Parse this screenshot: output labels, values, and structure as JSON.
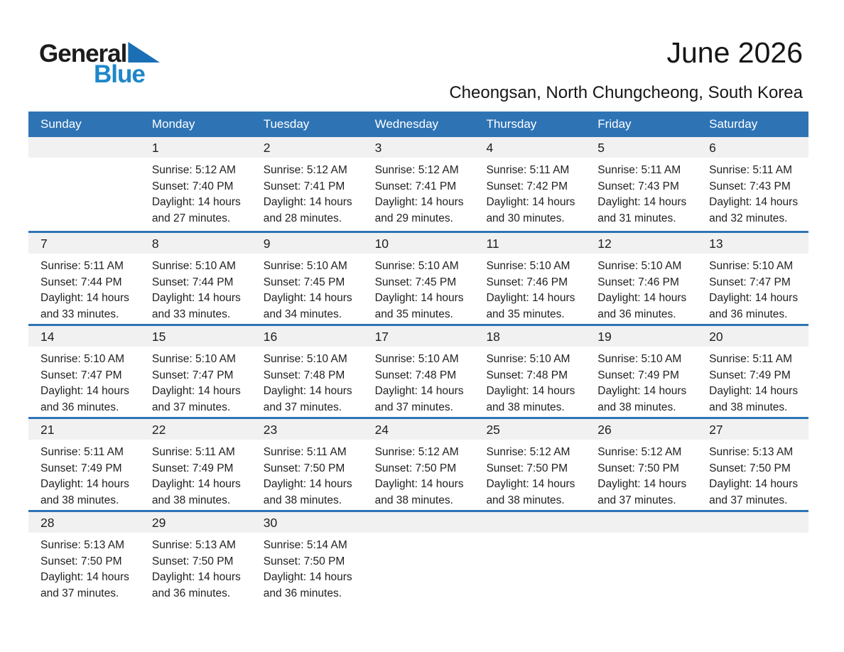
{
  "logo": {
    "general": "General",
    "blue": "Blue"
  },
  "header": {
    "title": "June 2026",
    "subtitle": "Cheongsan, North Chungcheong, South Korea"
  },
  "colors": {
    "header_blue": "#2e74b5",
    "separator_blue": "#2e74b5",
    "band_gray": "#f1f1f1",
    "logo_black": "#1c1c1c",
    "logo_blue": "#1e87c9",
    "text": "#212121"
  },
  "calendar": {
    "weekdays": [
      "Sunday",
      "Monday",
      "Tuesday",
      "Wednesday",
      "Thursday",
      "Friday",
      "Saturday"
    ],
    "weeks": [
      [
        null,
        {
          "day": "1",
          "sunrise": "Sunrise: 5:12 AM",
          "sunset": "Sunset: 7:40 PM",
          "daylight1": "Daylight: 14 hours",
          "daylight2": "and 27 minutes."
        },
        {
          "day": "2",
          "sunrise": "Sunrise: 5:12 AM",
          "sunset": "Sunset: 7:41 PM",
          "daylight1": "Daylight: 14 hours",
          "daylight2": "and 28 minutes."
        },
        {
          "day": "3",
          "sunrise": "Sunrise: 5:12 AM",
          "sunset": "Sunset: 7:41 PM",
          "daylight1": "Daylight: 14 hours",
          "daylight2": "and 29 minutes."
        },
        {
          "day": "4",
          "sunrise": "Sunrise: 5:11 AM",
          "sunset": "Sunset: 7:42 PM",
          "daylight1": "Daylight: 14 hours",
          "daylight2": "and 30 minutes."
        },
        {
          "day": "5",
          "sunrise": "Sunrise: 5:11 AM",
          "sunset": "Sunset: 7:43 PM",
          "daylight1": "Daylight: 14 hours",
          "daylight2": "and 31 minutes."
        },
        {
          "day": "6",
          "sunrise": "Sunrise: 5:11 AM",
          "sunset": "Sunset: 7:43 PM",
          "daylight1": "Daylight: 14 hours",
          "daylight2": "and 32 minutes."
        }
      ],
      [
        {
          "day": "7",
          "sunrise": "Sunrise: 5:11 AM",
          "sunset": "Sunset: 7:44 PM",
          "daylight1": "Daylight: 14 hours",
          "daylight2": "and 33 minutes."
        },
        {
          "day": "8",
          "sunrise": "Sunrise: 5:10 AM",
          "sunset": "Sunset: 7:44 PM",
          "daylight1": "Daylight: 14 hours",
          "daylight2": "and 33 minutes."
        },
        {
          "day": "9",
          "sunrise": "Sunrise: 5:10 AM",
          "sunset": "Sunset: 7:45 PM",
          "daylight1": "Daylight: 14 hours",
          "daylight2": "and 34 minutes."
        },
        {
          "day": "10",
          "sunrise": "Sunrise: 5:10 AM",
          "sunset": "Sunset: 7:45 PM",
          "daylight1": "Daylight: 14 hours",
          "daylight2": "and 35 minutes."
        },
        {
          "day": "11",
          "sunrise": "Sunrise: 5:10 AM",
          "sunset": "Sunset: 7:46 PM",
          "daylight1": "Daylight: 14 hours",
          "daylight2": "and 35 minutes."
        },
        {
          "day": "12",
          "sunrise": "Sunrise: 5:10 AM",
          "sunset": "Sunset: 7:46 PM",
          "daylight1": "Daylight: 14 hours",
          "daylight2": "and 36 minutes."
        },
        {
          "day": "13",
          "sunrise": "Sunrise: 5:10 AM",
          "sunset": "Sunset: 7:47 PM",
          "daylight1": "Daylight: 14 hours",
          "daylight2": "and 36 minutes."
        }
      ],
      [
        {
          "day": "14",
          "sunrise": "Sunrise: 5:10 AM",
          "sunset": "Sunset: 7:47 PM",
          "daylight1": "Daylight: 14 hours",
          "daylight2": "and 36 minutes."
        },
        {
          "day": "15",
          "sunrise": "Sunrise: 5:10 AM",
          "sunset": "Sunset: 7:47 PM",
          "daylight1": "Daylight: 14 hours",
          "daylight2": "and 37 minutes."
        },
        {
          "day": "16",
          "sunrise": "Sunrise: 5:10 AM",
          "sunset": "Sunset: 7:48 PM",
          "daylight1": "Daylight: 14 hours",
          "daylight2": "and 37 minutes."
        },
        {
          "day": "17",
          "sunrise": "Sunrise: 5:10 AM",
          "sunset": "Sunset: 7:48 PM",
          "daylight1": "Daylight: 14 hours",
          "daylight2": "and 37 minutes."
        },
        {
          "day": "18",
          "sunrise": "Sunrise: 5:10 AM",
          "sunset": "Sunset: 7:48 PM",
          "daylight1": "Daylight: 14 hours",
          "daylight2": "and 38 minutes."
        },
        {
          "day": "19",
          "sunrise": "Sunrise: 5:10 AM",
          "sunset": "Sunset: 7:49 PM",
          "daylight1": "Daylight: 14 hours",
          "daylight2": "and 38 minutes."
        },
        {
          "day": "20",
          "sunrise": "Sunrise: 5:11 AM",
          "sunset": "Sunset: 7:49 PM",
          "daylight1": "Daylight: 14 hours",
          "daylight2": "and 38 minutes."
        }
      ],
      [
        {
          "day": "21",
          "sunrise": "Sunrise: 5:11 AM",
          "sunset": "Sunset: 7:49 PM",
          "daylight1": "Daylight: 14 hours",
          "daylight2": "and 38 minutes."
        },
        {
          "day": "22",
          "sunrise": "Sunrise: 5:11 AM",
          "sunset": "Sunset: 7:49 PM",
          "daylight1": "Daylight: 14 hours",
          "daylight2": "and 38 minutes."
        },
        {
          "day": "23",
          "sunrise": "Sunrise: 5:11 AM",
          "sunset": "Sunset: 7:50 PM",
          "daylight1": "Daylight: 14 hours",
          "daylight2": "and 38 minutes."
        },
        {
          "day": "24",
          "sunrise": "Sunrise: 5:12 AM",
          "sunset": "Sunset: 7:50 PM",
          "daylight1": "Daylight: 14 hours",
          "daylight2": "and 38 minutes."
        },
        {
          "day": "25",
          "sunrise": "Sunrise: 5:12 AM",
          "sunset": "Sunset: 7:50 PM",
          "daylight1": "Daylight: 14 hours",
          "daylight2": "and 38 minutes."
        },
        {
          "day": "26",
          "sunrise": "Sunrise: 5:12 AM",
          "sunset": "Sunset: 7:50 PM",
          "daylight1": "Daylight: 14 hours",
          "daylight2": "and 37 minutes."
        },
        {
          "day": "27",
          "sunrise": "Sunrise: 5:13 AM",
          "sunset": "Sunset: 7:50 PM",
          "daylight1": "Daylight: 14 hours",
          "daylight2": "and 37 minutes."
        }
      ],
      [
        {
          "day": "28",
          "sunrise": "Sunrise: 5:13 AM",
          "sunset": "Sunset: 7:50 PM",
          "daylight1": "Daylight: 14 hours",
          "daylight2": "and 37 minutes."
        },
        {
          "day": "29",
          "sunrise": "Sunrise: 5:13 AM",
          "sunset": "Sunset: 7:50 PM",
          "daylight1": "Daylight: 14 hours",
          "daylight2": "and 36 minutes."
        },
        {
          "day": "30",
          "sunrise": "Sunrise: 5:14 AM",
          "sunset": "Sunset: 7:50 PM",
          "daylight1": "Daylight: 14 hours",
          "daylight2": "and 36 minutes."
        },
        null,
        null,
        null,
        null
      ]
    ]
  }
}
